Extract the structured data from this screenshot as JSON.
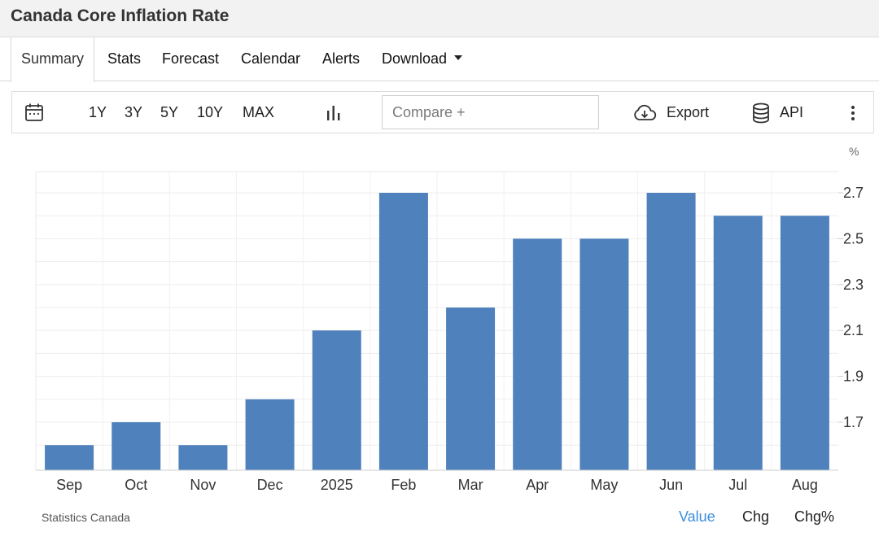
{
  "page": {
    "title": "Canada Core Inflation Rate"
  },
  "tabs": [
    {
      "label": "Summary",
      "active": true
    },
    {
      "label": "Stats"
    },
    {
      "label": "Forecast"
    },
    {
      "label": "Calendar"
    },
    {
      "label": "Alerts"
    },
    {
      "label": "Download",
      "dropdown": true
    }
  ],
  "toolbar": {
    "calendar_icon": "calendar-icon",
    "ranges": [
      "1Y",
      "3Y",
      "5Y",
      "10Y",
      "MAX"
    ],
    "chart_type_icon": "bar-chart-icon",
    "compare_placeholder": "Compare +",
    "export_label": "Export",
    "api_label": "API",
    "more_icon": "more-vertical-icon"
  },
  "chart_data": {
    "type": "bar",
    "unit": "%",
    "categories": [
      "Sep",
      "Oct",
      "Nov",
      "Dec",
      "2025",
      "Feb",
      "Mar",
      "Apr",
      "May",
      "Jun",
      "Jul",
      "Aug"
    ],
    "values": [
      1.6,
      1.7,
      1.6,
      1.8,
      2.1,
      2.7,
      2.2,
      2.5,
      2.5,
      2.7,
      2.6,
      2.6
    ],
    "y_ticks": [
      "1.7",
      "1.9",
      "2.1",
      "2.3",
      "2.5",
      "2.7"
    ],
    "ylim": [
      1.5,
      2.8
    ],
    "grid": true,
    "bar_color": "#4f81bd"
  },
  "footer": {
    "source": "Statistics Canada",
    "views": [
      "Value",
      "Chg",
      "Chg%"
    ],
    "active_view": "Value",
    "active_color": "#3c8ee0"
  }
}
